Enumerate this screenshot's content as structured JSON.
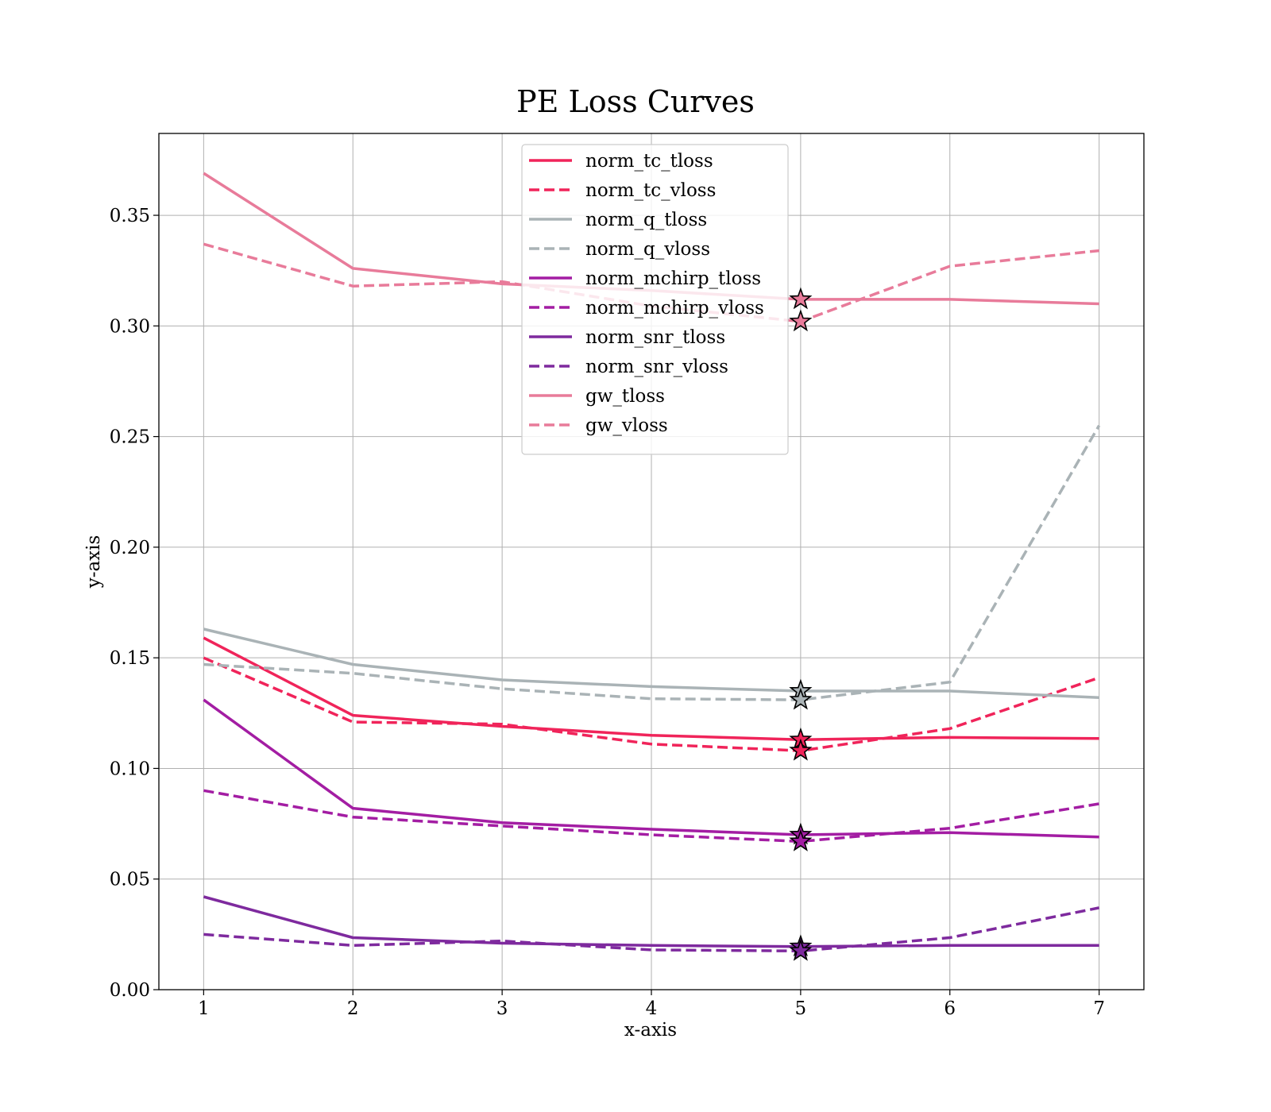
{
  "chart_data": {
    "type": "line",
    "title": "PE Loss Curves",
    "xlabel": "x-axis",
    "ylabel": "y-axis",
    "xlim": [
      0.7,
      7.3
    ],
    "ylim": [
      0.0,
      0.387
    ],
    "x": [
      1,
      2,
      3,
      4,
      5,
      6,
      7
    ],
    "xticks": [
      1,
      2,
      3,
      4,
      5,
      6,
      7
    ],
    "yticks": [
      "0.00",
      "0.05",
      "0.10",
      "0.15",
      "0.20",
      "0.25",
      "0.30",
      "0.35"
    ],
    "grid": true,
    "legend_position": "top-center",
    "series": [
      {
        "name": "norm_tc_tloss",
        "color": "#f0245a",
        "dash": "solid",
        "values": [
          0.159,
          0.124,
          0.119,
          0.115,
          0.113,
          0.114,
          0.1135
        ]
      },
      {
        "name": "norm_tc_vloss",
        "color": "#f0245a",
        "dash": "dashed",
        "values": [
          0.15,
          0.121,
          0.12,
          0.111,
          0.108,
          0.118,
          0.141
        ]
      },
      {
        "name": "norm_q_tloss",
        "color": "#aab3b6",
        "dash": "solid",
        "values": [
          0.163,
          0.147,
          0.14,
          0.137,
          0.135,
          0.135,
          0.132
        ]
      },
      {
        "name": "norm_q_vloss",
        "color": "#aab3b6",
        "dash": "dashed",
        "values": [
          0.147,
          0.143,
          0.136,
          0.1315,
          0.131,
          0.139,
          0.255
        ]
      },
      {
        "name": "norm_mchirp_tloss",
        "color": "#a31da3",
        "dash": "solid",
        "values": [
          0.131,
          0.082,
          0.0755,
          0.0725,
          0.07,
          0.071,
          0.069
        ]
      },
      {
        "name": "norm_mchirp_vloss",
        "color": "#a31da3",
        "dash": "dashed",
        "values": [
          0.09,
          0.078,
          0.074,
          0.07,
          0.067,
          0.073,
          0.084
        ]
      },
      {
        "name": "norm_snr_tloss",
        "color": "#7e2a9e",
        "dash": "solid",
        "values": [
          0.042,
          0.0235,
          0.021,
          0.02,
          0.0195,
          0.02,
          0.02
        ]
      },
      {
        "name": "norm_snr_vloss",
        "color": "#7e2a9e",
        "dash": "dashed",
        "values": [
          0.025,
          0.02,
          0.022,
          0.018,
          0.0175,
          0.0235,
          0.037
        ]
      },
      {
        "name": "gw_tloss",
        "color": "#e87b9a",
        "dash": "solid",
        "values": [
          0.369,
          0.326,
          0.319,
          0.316,
          0.312,
          0.312,
          0.31
        ]
      },
      {
        "name": "gw_vloss",
        "color": "#e87b9a",
        "dash": "dashed",
        "values": [
          0.337,
          0.318,
          0.32,
          0.309,
          0.302,
          0.327,
          0.334
        ]
      }
    ],
    "markers": {
      "symbol": "star",
      "x": 5
    }
  }
}
